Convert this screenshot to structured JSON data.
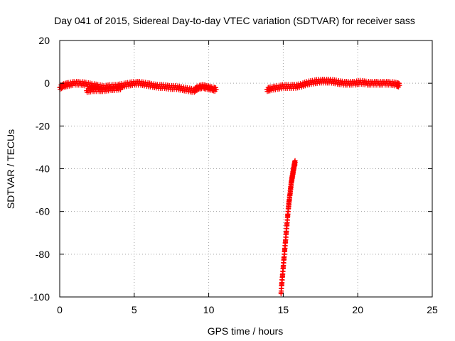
{
  "chart_data": {
    "type": "scatter",
    "title": "Day 041 of 2015, Sidereal Day-to-day VTEC variation (SDTVAR) for receiver sass",
    "xlabel": "GPS time / hours",
    "ylabel": "SDTVAR / TECUs",
    "xlim": [
      0,
      25
    ],
    "ylim": [
      -100,
      20
    ],
    "xticks": [
      0,
      5,
      10,
      15,
      20,
      25
    ],
    "yticks": [
      -100,
      -80,
      -60,
      -40,
      -20,
      0,
      20
    ],
    "grid": true,
    "marker": "plus",
    "color": "#ff0000",
    "segments": [
      {
        "x": [
          0.0,
          0.3,
          0.6,
          1.0,
          1.4,
          1.8,
          2.2,
          2.6,
          3.0,
          3.4,
          3.8,
          4.2,
          4.6,
          5.0,
          5.4,
          5.8,
          6.2,
          6.6,
          7.0,
          7.4,
          7.8,
          8.2,
          8.6,
          9.0,
          9.3,
          9.6,
          9.9,
          10.2,
          10.5
        ],
        "y": [
          -2,
          -1,
          -0.5,
          0,
          0,
          -0.5,
          -1,
          -1.5,
          -2,
          -1.5,
          -1.5,
          -1,
          -0.5,
          0,
          0,
          -0.5,
          -1,
          -1.5,
          -1.5,
          -2,
          -2,
          -2.5,
          -3,
          -3.5,
          -2,
          -1.5,
          -2,
          -2.5,
          -3
        ]
      },
      {
        "x": [
          1.8,
          2.2,
          2.6,
          3.0,
          3.4,
          3.8,
          4.2
        ],
        "y": [
          -3.5,
          -3,
          -3,
          -3,
          -2.5,
          -2.5,
          -2
        ]
      },
      {
        "x": [
          13.9,
          14.2,
          14.6,
          15.0,
          15.4,
          15.8,
          16.2,
          16.6,
          17.0,
          17.4,
          17.8,
          18.2,
          18.6,
          19.0,
          19.4,
          19.8,
          20.2,
          20.6,
          21.0,
          21.4,
          21.8,
          22.2,
          22.6,
          22.8
        ],
        "y": [
          -3,
          -2.5,
          -2,
          -1.5,
          -1.5,
          -1.5,
          -1,
          0,
          0.5,
          1,
          1,
          1,
          0.5,
          0,
          0,
          0,
          0.5,
          0,
          0,
          0,
          0,
          0,
          -0.5,
          -1
        ]
      },
      {
        "x": [
          14.85,
          14.9,
          14.95,
          15.0,
          15.05,
          15.1,
          15.15,
          15.2,
          15.25,
          15.3,
          15.35,
          15.4,
          15.45,
          15.5,
          15.55,
          15.6,
          15.65,
          15.7,
          15.75,
          15.8
        ],
        "y": [
          -98,
          -94,
          -90,
          -86,
          -82,
          -78,
          -74,
          -70,
          -66,
          -62,
          -58,
          -55,
          -52,
          -49,
          -46,
          -44,
          -42,
          -40,
          -38,
          -37
        ]
      }
    ]
  }
}
